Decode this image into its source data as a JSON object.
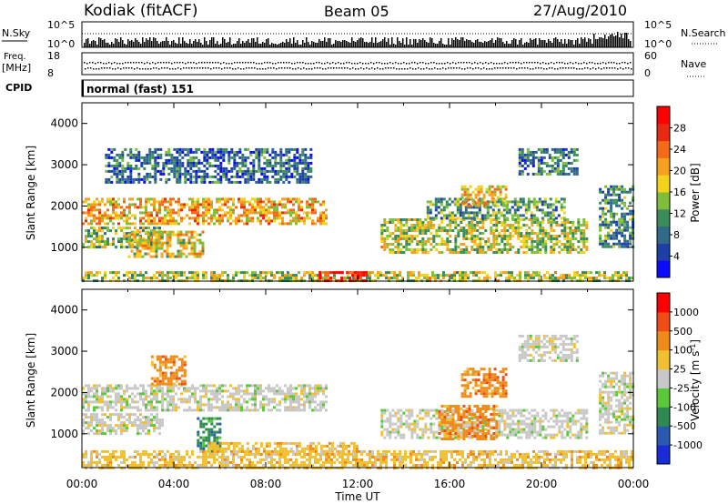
{
  "header": {
    "station": "Kodiak (fitACF)",
    "beam": "Beam 05",
    "date": "27/Aug/2010"
  },
  "top_panels": {
    "nsky_label": "N.Sky",
    "nsearch_label": "N.Search",
    "nsky_ticks": [
      "10^5",
      "10^0"
    ],
    "nsearch_ticks": [
      "10^5",
      "10^0"
    ],
    "freq_label_1": "Freq.",
    "freq_label_2": "[MHz]",
    "freq_ticks": [
      "18",
      "8"
    ],
    "nave_label": "Nave",
    "nave_ticks": [
      "60",
      "0"
    ],
    "cpid_label": "CPID",
    "cpid_value": "normal (fast) 151"
  },
  "chart_data": [
    {
      "type": "heatmap",
      "panel": "power",
      "ylabel": "Slant Range [km]",
      "xlabel": "",
      "x_ticks": [
        "00:00",
        "04:00",
        "08:00",
        "12:00",
        "16:00",
        "20:00",
        "00:00"
      ],
      "y_ticks": [
        1000,
        2000,
        3000,
        4000
      ],
      "ylim": [
        180,
        4500
      ],
      "xlim_hours": [
        0,
        24
      ],
      "colorbar": {
        "label": "Power [dB]",
        "ticks": [
          "4",
          "8",
          "12",
          "16",
          "20",
          "24",
          "28"
        ],
        "colors": [
          "#0a0aff",
          "#1e3fa8",
          "#2f6a8a",
          "#3a8c5a",
          "#7fbe3a",
          "#f2d21a",
          "#f7a020",
          "#f36a18",
          "#e82a10",
          "#ff0000"
        ]
      },
      "echo_regions": [
        {
          "t": [
            0.0,
            10.6
          ],
          "r": [
            1550,
            2200
          ],
          "level": 0.65
        },
        {
          "t": [
            0.0,
            3.5
          ],
          "r": [
            1000,
            1500
          ],
          "level": 0.45
        },
        {
          "t": [
            2.0,
            5.3
          ],
          "r": [
            800,
            1400
          ],
          "level": 0.55
        },
        {
          "t": [
            1.0,
            10.0
          ],
          "r": [
            2600,
            3400
          ],
          "level": 0.2
        },
        {
          "t": [
            0.0,
            24.0
          ],
          "r": [
            180,
            420
          ],
          "level": 0.5
        },
        {
          "t": [
            10.3,
            12.4
          ],
          "r": [
            180,
            420
          ],
          "level": 0.95
        },
        {
          "t": [
            13.0,
            22.0
          ],
          "r": [
            900,
            1700
          ],
          "level": 0.5
        },
        {
          "t": [
            15.0,
            21.0
          ],
          "r": [
            1700,
            2200
          ],
          "level": 0.35
        },
        {
          "t": [
            16.5,
            18.5
          ],
          "r": [
            2000,
            2500
          ],
          "level": 0.6
        },
        {
          "t": [
            19.0,
            21.5
          ],
          "r": [
            2800,
            3400
          ],
          "level": 0.25
        },
        {
          "t": [
            22.5,
            24.0
          ],
          "r": [
            1000,
            2500
          ],
          "level": 0.3
        }
      ]
    },
    {
      "type": "heatmap",
      "panel": "velocity",
      "ylabel": "Slant Range [km]",
      "xlabel": "Time UT",
      "x_ticks": [
        "00:00",
        "04:00",
        "08:00",
        "12:00",
        "16:00",
        "20:00",
        "00:00"
      ],
      "y_ticks": [
        1000,
        2000,
        3000,
        4000
      ],
      "ylim": [
        180,
        4500
      ],
      "xlim_hours": [
        0,
        24
      ],
      "colorbar": {
        "label": "Velocity [m s",
        "label_superscript": "-1",
        "label_end": "]",
        "ticks": [
          "1000",
          "500",
          "100",
          "25",
          "-25",
          "-100",
          "-500",
          "-1000"
        ],
        "colors": [
          "#1a2cd6",
          "#2a5ab0",
          "#2e8a52",
          "#5ac83a",
          "#c8c8c8",
          "#f0c030",
          "#f08a18",
          "#f04c14",
          "#ff0000"
        ]
      },
      "echo_regions": [
        {
          "t": [
            0.0,
            10.6
          ],
          "r": [
            1550,
            2200
          ],
          "level": 4
        },
        {
          "t": [
            0.0,
            3.5
          ],
          "r": [
            1000,
            1500
          ],
          "level": 4
        },
        {
          "t": [
            3.0,
            4.5
          ],
          "r": [
            2200,
            2900
          ],
          "level": 6
        },
        {
          "t": [
            5.0,
            6.0
          ],
          "r": [
            600,
            1400
          ],
          "level": 2
        },
        {
          "t": [
            0.0,
            24.0
          ],
          "r": [
            180,
            600
          ],
          "level": 5
        },
        {
          "t": [
            5.5,
            12.0
          ],
          "r": [
            500,
            800
          ],
          "level": 5
        },
        {
          "t": [
            13.0,
            22.0
          ],
          "r": [
            900,
            1600
          ],
          "level": 4
        },
        {
          "t": [
            15.5,
            18.0
          ],
          "r": [
            900,
            1700
          ],
          "level": 6
        },
        {
          "t": [
            16.5,
            18.5
          ],
          "r": [
            1900,
            2600
          ],
          "level": 6
        },
        {
          "t": [
            19.0,
            21.5
          ],
          "r": [
            2800,
            3400
          ],
          "level": 4
        },
        {
          "t": [
            22.5,
            24.0
          ],
          "r": [
            1000,
            2500
          ],
          "level": 4
        }
      ]
    }
  ]
}
